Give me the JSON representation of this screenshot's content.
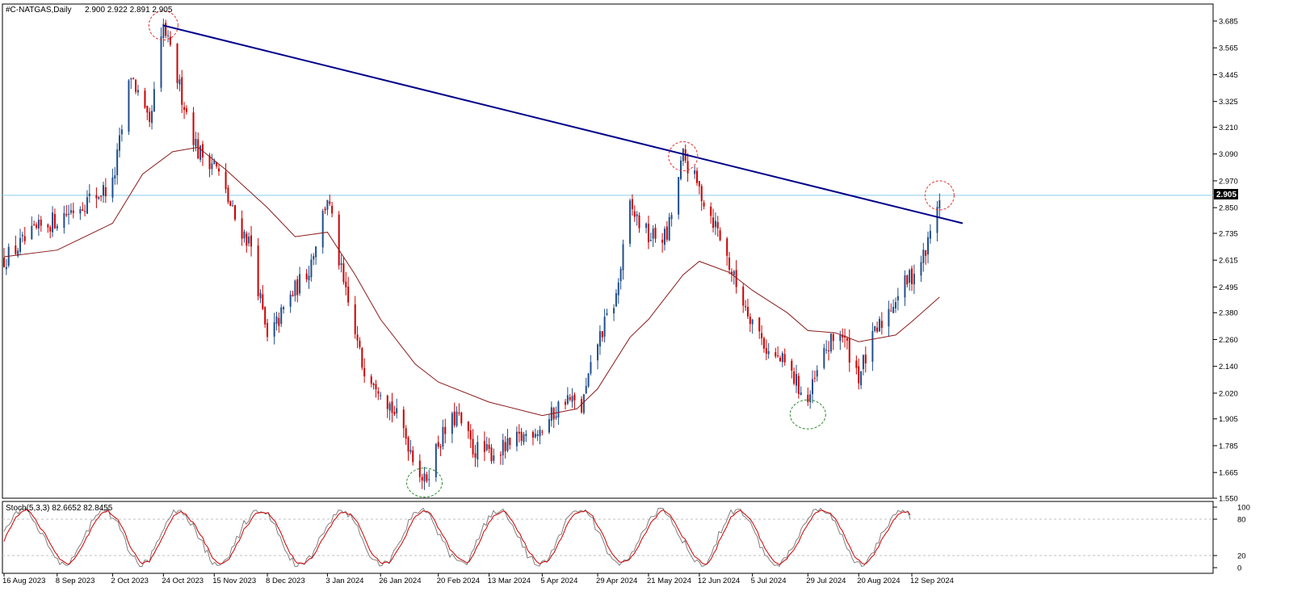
{
  "chart_data": [
    {
      "type": "candlestick",
      "title": "#C-NATGAS,Daily",
      "ohlc": "2.900 2.922 2.891 2.905",
      "last_price": 2.905,
      "last_price_label": "2.905",
      "price_ticks": [
        "3.685",
        "3.565",
        "3.445",
        "3.325",
        "3.210",
        "3.090",
        "2.970",
        "2.850",
        "2.735",
        "2.615",
        "2.495",
        "2.380",
        "2.260",
        "2.140",
        "2.020",
        "1.905",
        "1.785",
        "1.665",
        "1.550"
      ],
      "ylim": [
        1.55,
        3.685
      ],
      "date_ticks": [
        "16 Aug 2023",
        "8 Sep 2023",
        "2 Oct 2023",
        "24 Oct 2023",
        "15 Nov 2023",
        "8 Dec 2023",
        "3 Jan 2024",
        "26 Jan 2024",
        "20 Feb 2024",
        "13 Mar 2024",
        "5 Apr 2024",
        "29 Apr 2024",
        "21 May 2024",
        "12 Jun 2024",
        "5 Jul 2024",
        "29 Jul 2024",
        "20 Aug 2024",
        "12 Sep 2024"
      ],
      "close_path": [
        [
          "16 Aug 2023",
          2.62
        ],
        [
          "1 Sep 2023",
          2.76
        ],
        [
          "8 Sep 2023",
          2.8
        ],
        [
          "2 Oct 2023",
          2.95
        ],
        [
          "10 Oct 2023",
          3.45
        ],
        [
          "18 Oct 2023",
          3.2
        ],
        [
          "24 Oct 2023",
          3.66
        ],
        [
          "1 Nov 2023",
          3.35
        ],
        [
          "8 Nov 2023",
          3.1
        ],
        [
          "15 Nov 2023",
          3.05
        ],
        [
          "24 Nov 2023",
          2.8
        ],
        [
          "1 Dec 2023",
          2.68
        ],
        [
          "8 Dec 2023",
          2.25
        ],
        [
          "18 Dec 2023",
          2.45
        ],
        [
          "26 Dec 2023",
          2.58
        ],
        [
          "3 Jan 2024",
          2.9
        ],
        [
          "10 Jan 2024",
          2.5
        ],
        [
          "18 Jan 2024",
          2.15
        ],
        [
          "26 Jan 2024",
          2.05
        ],
        [
          "5 Feb 2024",
          1.85
        ],
        [
          "14 Feb 2024",
          1.62
        ],
        [
          "20 Feb 2024",
          1.8
        ],
        [
          "28 Feb 2024",
          1.92
        ],
        [
          "6 Mar 2024",
          1.77
        ],
        [
          "13 Mar 2024",
          1.75
        ],
        [
          "22 Mar 2024",
          1.78
        ],
        [
          "1 Apr 2024",
          1.86
        ],
        [
          "5 Apr 2024",
          1.86
        ],
        [
          "15 Apr 2024",
          2.0
        ],
        [
          "22 Apr 2024",
          1.95
        ],
        [
          "29 Apr 2024",
          2.25
        ],
        [
          "7 May 2024",
          2.45
        ],
        [
          "13 May 2024",
          2.85
        ],
        [
          "21 May 2024",
          2.72
        ],
        [
          "29 May 2024",
          2.72
        ],
        [
          "5 Jun 2024",
          3.08
        ],
        [
          "12 Jun 2024",
          2.93
        ],
        [
          "20 Jun 2024",
          2.75
        ],
        [
          "28 Jun 2024",
          2.5
        ],
        [
          "5 Jul 2024",
          2.35
        ],
        [
          "12 Jul 2024",
          2.2
        ],
        [
          "19 Jul 2024",
          2.15
        ],
        [
          "25 Jul 2024",
          2.05
        ],
        [
          "29 Jul 2024",
          1.98
        ],
        [
          "5 Aug 2024",
          2.2
        ],
        [
          "12 Aug 2024",
          2.3
        ],
        [
          "20 Aug 2024",
          2.1
        ],
        [
          "27 Aug 2024",
          2.28
        ],
        [
          "5 Sep 2024",
          2.45
        ],
        [
          "12 Sep 2024",
          2.55
        ],
        [
          "18 Sep 2024",
          2.65
        ],
        [
          "24 Sep 2024",
          2.905
        ]
      ],
      "moving_average": {
        "color": "#8b1a1a",
        "values": [
          [
            "16 Aug 2023",
            2.63
          ],
          [
            "8 Sep 2023",
            2.66
          ],
          [
            "2 Oct 2023",
            2.78
          ],
          [
            "15 Oct 2023",
            3.0
          ],
          [
            "28 Oct 2023",
            3.1
          ],
          [
            "8 Nov 2023",
            3.12
          ],
          [
            "20 Nov 2023",
            3.02
          ],
          [
            "8 Dec 2023",
            2.85
          ],
          [
            "20 Dec 2023",
            2.72
          ],
          [
            "3 Jan 2024",
            2.74
          ],
          [
            "15 Jan 2024",
            2.55
          ],
          [
            "26 Jan 2024",
            2.35
          ],
          [
            "10 Feb 2024",
            2.15
          ],
          [
            "20 Feb 2024",
            2.07
          ],
          [
            "13 Mar 2024",
            1.98
          ],
          [
            "5 Apr 2024",
            1.92
          ],
          [
            "20 Apr 2024",
            1.95
          ],
          [
            "29 Apr 2024",
            2.04
          ],
          [
            "13 May 2024",
            2.27
          ],
          [
            "21 May 2024",
            2.35
          ],
          [
            "5 Jun 2024",
            2.55
          ],
          [
            "12 Jun 2024",
            2.61
          ],
          [
            "25 Jun 2024",
            2.56
          ],
          [
            "5 Jul 2024",
            2.48
          ],
          [
            "20 Jul 2024",
            2.38
          ],
          [
            "29 Jul 2024",
            2.3
          ],
          [
            "10 Aug 2024",
            2.29
          ],
          [
            "20 Aug 2024",
            2.25
          ],
          [
            "5 Sep 2024",
            2.28
          ],
          [
            "12 Sep 2024",
            2.34
          ],
          [
            "24 Sep 2024",
            2.45
          ]
        ]
      },
      "trendline": {
        "color": "#00008b",
        "start": [
          "24 Oct 2023",
          3.665
        ],
        "end": [
          "4 Oct 2024",
          2.78
        ]
      },
      "horizontal_line": {
        "value": 2.905,
        "color": "#87ceeb"
      },
      "resistance_markers": [
        [
          "24 Oct 2023",
          3.665
        ],
        [
          "5 Jun 2024",
          3.08
        ],
        [
          "24 Sep 2024",
          2.905
        ]
      ],
      "support_markers": [
        [
          "14 Feb 2024",
          1.62
        ],
        [
          "29 Jul 2024",
          1.925
        ]
      ],
      "bull_color": "#1f4e8c",
      "bear_color": "#cc0000"
    },
    {
      "type": "line",
      "title": "Stoch(5,3,3) 82.6652 82.8455",
      "ylim": [
        0,
        100
      ],
      "y_ticks": [
        "100",
        "80",
        "20",
        "0"
      ],
      "levels": [
        80,
        20
      ],
      "main_color": "#808080",
      "signal_color": "#cc0000"
    }
  ]
}
